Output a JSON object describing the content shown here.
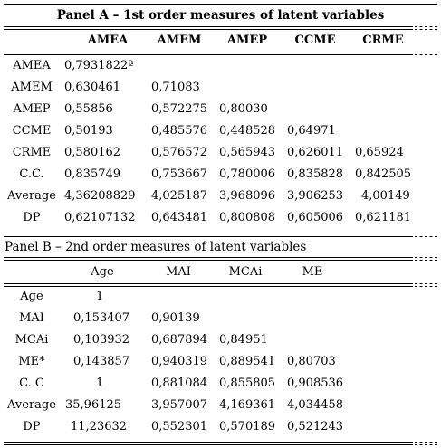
{
  "panel_a": {
    "title": "Panel A – 1st order measures of latent variables",
    "headers": [
      "",
      "AMEA",
      "AMEM",
      "AMEP",
      "CCME",
      "CRME"
    ],
    "rows": [
      {
        "label": "AMEA",
        "cells": [
          "0,7931822ª",
          "",
          "",
          "",
          ""
        ]
      },
      {
        "label": "AMEM",
        "cells": [
          "0,630461",
          "0,71083",
          "",
          "",
          ""
        ]
      },
      {
        "label": "AMEP",
        "cells": [
          "0,55856",
          "0,572275",
          "0,80030",
          "",
          ""
        ]
      },
      {
        "label": "CCME",
        "cells": [
          "0,50193",
          "0,485576",
          "0,448528",
          "0,64971",
          ""
        ]
      },
      {
        "label": "CRME",
        "cells": [
          "0,580162",
          "0,576572",
          "0,565943",
          "0,626011",
          "0,65924"
        ]
      },
      {
        "label": "C.C.",
        "cells": [
          "0,835749",
          "0,753667",
          "0,780006",
          "0,835828",
          "0,842505"
        ]
      },
      {
        "label": "Average",
        "cells": [
          "4,36208829",
          "4,025187",
          "3,968096",
          "3,906253",
          "4,00149"
        ]
      },
      {
        "label": "DP",
        "cells": [
          "0,62107132",
          "0,643481",
          "0,800808",
          "0,605006",
          "0,621181"
        ]
      }
    ]
  },
  "panel_b": {
    "title": "Panel B – 2nd order measures of latent variables",
    "headers": [
      "",
      "Age",
      "MAI",
      "MCAi",
      "ME"
    ],
    "rows": [
      {
        "label": "Age",
        "cells": [
          "1",
          "",
          "",
          ""
        ]
      },
      {
        "label": "MAI",
        "cells": [
          "0,153407",
          "0,90139",
          "",
          ""
        ]
      },
      {
        "label": "MCAi",
        "cells": [
          "0,103932",
          "0,687894",
          "0,84951",
          ""
        ]
      },
      {
        "label": "ME*",
        "cells": [
          "0,143857",
          "0,940319",
          "0,889541",
          "0,80703"
        ]
      },
      {
        "label": "C. C",
        "cells": [
          "1",
          "0,881084",
          "0,855805",
          "0,908536"
        ]
      },
      {
        "label": "Average",
        "cells": [
          "35,96125",
          "3,957007",
          "4,169361",
          "4,034458"
        ]
      },
      {
        "label": "DP",
        "cells": [
          "11,23632",
          "0,552301",
          "0,570189",
          "0,521243"
        ]
      }
    ]
  }
}
